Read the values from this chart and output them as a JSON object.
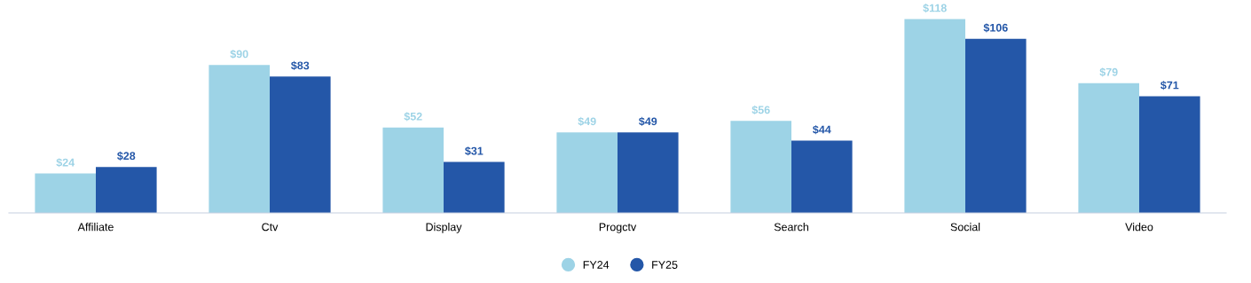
{
  "chart_data": {
    "type": "bar",
    "categories": [
      "Affiliate",
      "Ctv",
      "Display",
      "Progctv",
      "Search",
      "Social",
      "Video"
    ],
    "series": [
      {
        "name": "FY24",
        "color": "#9dd3e6",
        "values": [
          24,
          90,
          52,
          49,
          56,
          118,
          79
        ],
        "value_labels": [
          "$24",
          "$90",
          "$52",
          "$49",
          "$56",
          "$118",
          "$79"
        ]
      },
      {
        "name": "FY25",
        "color": "#2457a8",
        "values": [
          28,
          83,
          31,
          49,
          44,
          106,
          71
        ],
        "value_labels": [
          "$28",
          "$83",
          "$31",
          "$49",
          "$44",
          "$106",
          "$71"
        ]
      }
    ],
    "legend": "bottom",
    "marker": "circle",
    "grid": false
  }
}
